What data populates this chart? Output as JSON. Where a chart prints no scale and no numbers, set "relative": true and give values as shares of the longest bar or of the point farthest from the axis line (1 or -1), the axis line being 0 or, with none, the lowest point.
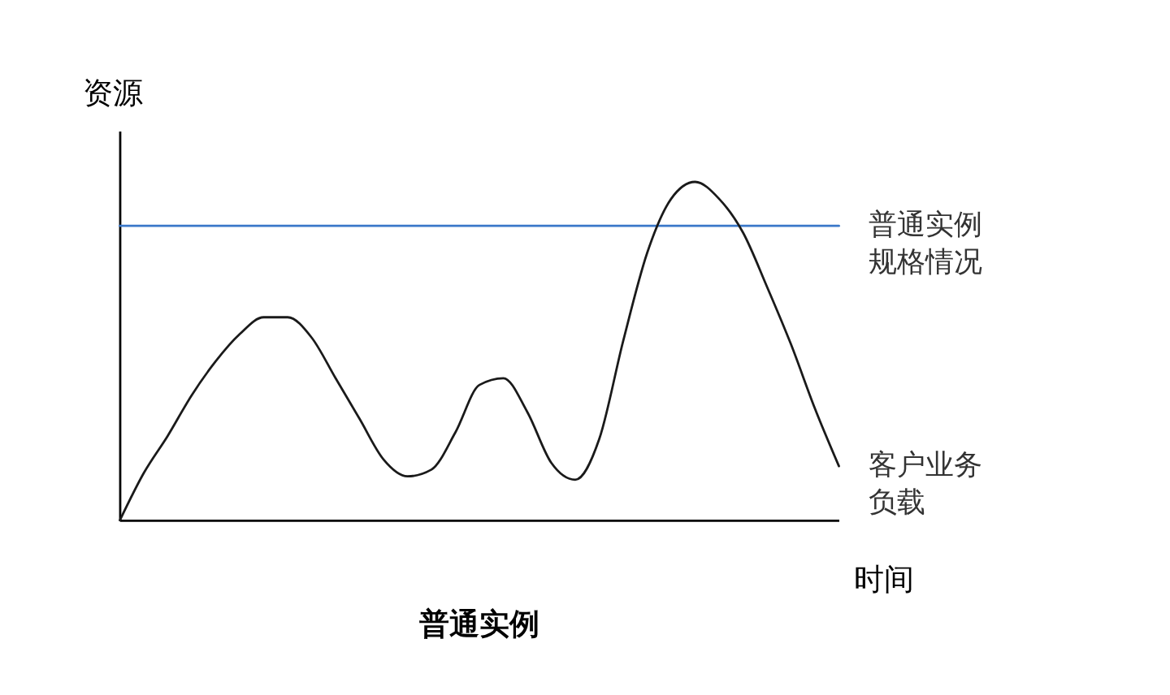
{
  "chart_data": {
    "type": "line",
    "title": "普通实例",
    "xlabel": "时间",
    "ylabel": "资源",
    "relative": true,
    "grid": false,
    "legend": false,
    "marker": "none",
    "line_style": "solid",
    "categories": [
      null,
      null,
      null,
      null,
      null,
      null,
      null,
      null,
      null,
      null,
      null,
      null,
      null,
      null,
      null,
      null,
      null,
      null,
      null,
      null,
      null,
      null,
      null,
      null,
      null,
      null,
      null,
      null,
      null,
      null,
      null
    ],
    "series": [
      {
        "name": "普通实例规格情况",
        "color": "#3a78c9",
        "values": [
          0.87,
          0.87,
          0.87,
          0.87,
          0.87,
          0.87,
          0.87,
          0.87,
          0.87,
          0.87,
          0.87,
          0.87,
          0.87,
          0.87,
          0.87,
          0.87,
          0.87,
          0.87,
          0.87,
          0.87,
          0.87,
          0.87,
          0.87,
          0.87,
          0.87,
          0.87,
          0.87,
          0.87,
          0.87,
          0.87,
          0.87
        ]
      },
      {
        "name": "客户业务负载",
        "color": "#1a1a1a",
        "values": [
          0,
          0.14,
          0.25,
          0.37,
          0.47,
          0.55,
          0.6,
          0.6,
          0.54,
          0.42,
          0.3,
          0.18,
          0.13,
          0.15,
          0.26,
          0.4,
          0.42,
          0.32,
          0.17,
          0.12,
          0.24,
          0.53,
          0.79,
          0.95,
          1,
          0.95,
          0.85,
          0.69,
          0.52,
          0.33,
          0.16
        ]
      }
    ]
  }
}
